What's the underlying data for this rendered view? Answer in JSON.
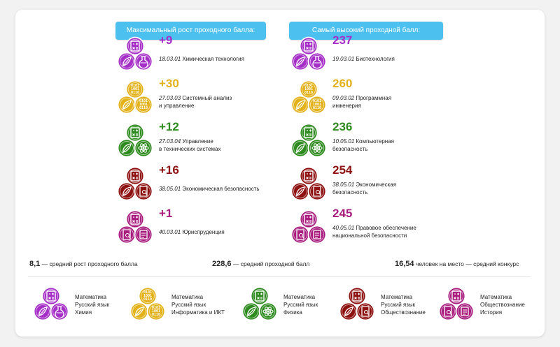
{
  "headers": {
    "left": "Максимальный рост проходного балла:",
    "right": "Самый высокий проходной балл:"
  },
  "colors": {
    "accent": "#4cc0ee",
    "chemistry": "#a52fc6",
    "informatics": "#e3b21a",
    "physics": "#2e8b1f",
    "social": "#8e1111",
    "history": "#a81c7e"
  },
  "growth": [
    {
      "value": "+9",
      "code": "18.03.01",
      "name_lines": [
        "Химическая технология"
      ],
      "scheme": "chemistry"
    },
    {
      "value": "+30",
      "code": "27.03.03",
      "name_lines": [
        "Системный анализ",
        "и управление"
      ],
      "scheme": "informatics"
    },
    {
      "value": "+12",
      "code": "27.03.04",
      "name_lines": [
        "Управление",
        "в технических системах"
      ],
      "scheme": "physics"
    },
    {
      "value": "+16",
      "code": "38.05.01",
      "name_lines": [
        "Экономическая безопасность"
      ],
      "scheme": "social"
    },
    {
      "value": "+1",
      "code": "40.03.01",
      "name_lines": [
        "Юриспруденция"
      ],
      "scheme": "history"
    }
  ],
  "highest": [
    {
      "value": "237",
      "code": "19.03.01",
      "name_lines": [
        "Биотехнология"
      ],
      "scheme": "chemistry"
    },
    {
      "value": "260",
      "code": "09.03.02",
      "name_lines": [
        "Программная",
        "инженерия"
      ],
      "scheme": "informatics"
    },
    {
      "value": "236",
      "code": "10.05.01",
      "name_lines": [
        "Компьютерная",
        "безопасность"
      ],
      "scheme": "physics"
    },
    {
      "value": "254",
      "code": "38.05.01",
      "name_lines": [
        "Экономическая",
        "безопасность"
      ],
      "scheme": "social"
    },
    {
      "value": "245",
      "code": "40.05.01",
      "name_lines": [
        "Правовое обеспечение",
        "национальной безопасности"
      ],
      "scheme": "history"
    }
  ],
  "stats": [
    {
      "number": "8,1",
      "text": " — средний рост проходного балла"
    },
    {
      "number": "228,6",
      "text": " — средний проходной балл"
    },
    {
      "number": "16,54",
      "text": " человек на место — средний конкурс"
    }
  ],
  "legend": [
    {
      "scheme": "chemistry",
      "subjects": [
        "Математика",
        "Русский язык",
        "Химия"
      ]
    },
    {
      "scheme": "informatics",
      "subjects": [
        "Математика",
        "Русский язык",
        "Информатика и ИКТ"
      ]
    },
    {
      "scheme": "physics",
      "subjects": [
        "Математика",
        "Русский язык",
        "Физика"
      ]
    },
    {
      "scheme": "social",
      "subjects": [
        "Математика",
        "Русский язык",
        "Обществознание"
      ]
    },
    {
      "scheme": "history",
      "subjects": [
        "Математика",
        "Обществознание",
        "История"
      ]
    }
  ]
}
